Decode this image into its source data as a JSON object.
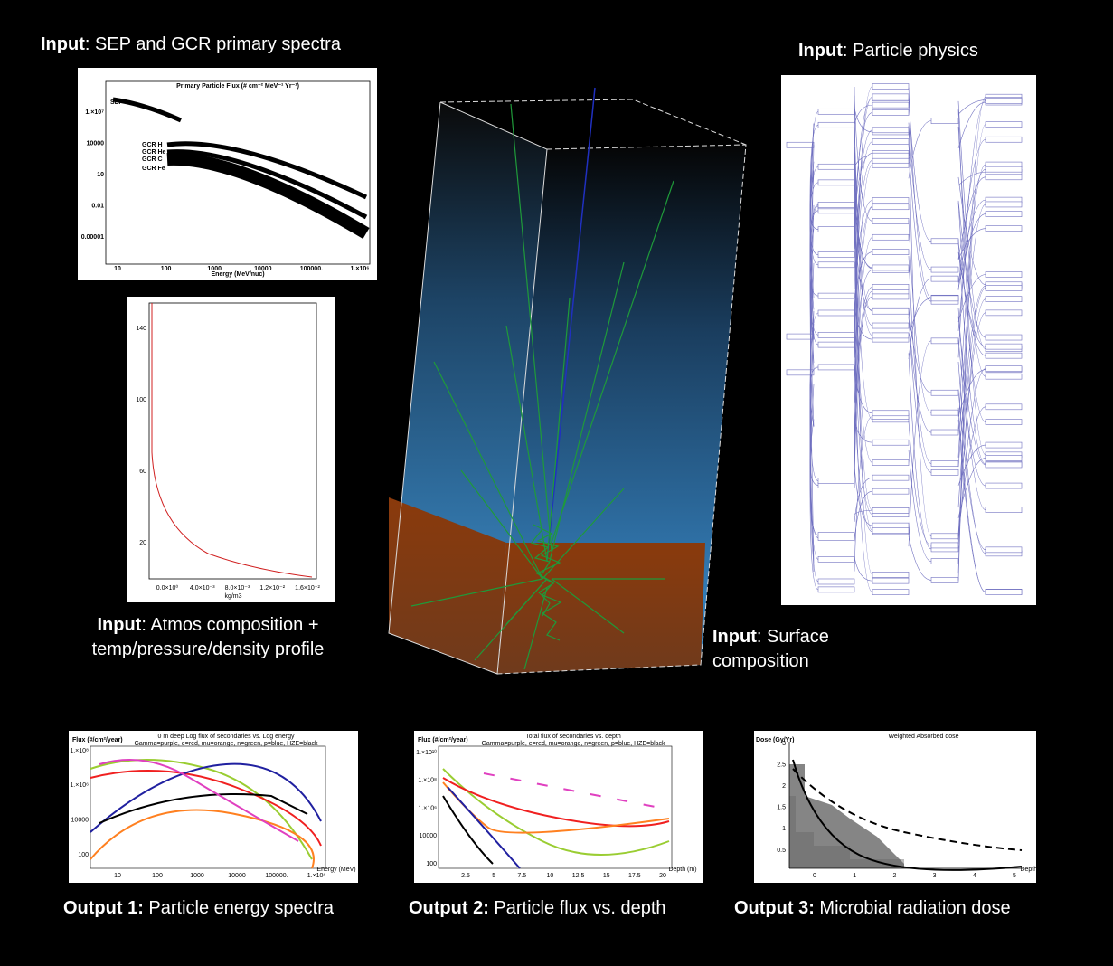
{
  "spectra": {
    "caption_bold": "Input",
    "caption": ": SEP and GCR primary spectra",
    "title": "Primary Particle Flux (# cm⁻² MeV⁻¹ Yr⁻¹)",
    "labels": [
      "SEP",
      "GCR H",
      "GCR He",
      "GCR C",
      "GCR Fe"
    ],
    "yticks": [
      "1.×10⁷",
      "10000",
      "10",
      "0.01",
      "0.00001"
    ],
    "xticks": [
      "10",
      "100",
      "1000",
      "10000",
      "100000.",
      "1.×10⁶"
    ],
    "xlabel": "Energy (MeV/nuc)"
  },
  "atmos": {
    "caption_bold": "Input",
    "caption": ": Atmos composition +",
    "caption2": "temp/pressure/density profile",
    "yticks": [
      "140",
      "100",
      "60",
      "20"
    ],
    "xticks": [
      "0.0×10⁰",
      "4.0×10⁻³",
      "8.0×10⁻³",
      "1.2×10⁻²",
      "1.6×10⁻²"
    ],
    "xlabel": "kg/m3"
  },
  "physics": {
    "caption_bold": "Input",
    "caption": ": Particle physics"
  },
  "surface": {
    "caption_bold": "Input",
    "caption": ": Surface",
    "caption2": "composition"
  },
  "out1": {
    "caption_bold": "Output 1:",
    "caption": " Particle energy spectra",
    "title": "0 m deep Log flux of secondaries vs. Log energy",
    "legend": "Gamma=purple, e=red, mu=orange, n=green, p=blue, HZE=black",
    "ylabel": "Flux (#/cm²/year)",
    "yticks": [
      "1.×10⁸",
      "1.×10⁶",
      "10000",
      "100"
    ],
    "xticks": [
      "10",
      "100",
      "1000",
      "10000",
      "100000.",
      "1.×10⁶"
    ],
    "xlabel": "Energy (MeV)"
  },
  "out2": {
    "caption_bold": "Output 2:",
    "caption": " Particle flux vs. depth",
    "title": "Total flux of secondaries vs. depth",
    "legend": "Gamma=purple, e=red, mu=orange, n=green, p=blue, HZE=black",
    "ylabel": "Flux (#/cm²/year)",
    "yticks": [
      "1.×10¹⁰",
      "1.×10⁸",
      "1.×10⁶",
      "10000",
      "100"
    ],
    "xticks": [
      "2.5",
      "5",
      "7.5",
      "10",
      "12.5",
      "15",
      "17.5",
      "20"
    ],
    "xlabel": "Depth (m)"
  },
  "out3": {
    "caption_bold": "Output 3:",
    "caption": " Microbial radiation dose",
    "title": "Weighted Absorbed dose",
    "ylabel": "Dose (Gy/Yr)",
    "yticks": [
      "3",
      "2.5",
      "2",
      "1.5",
      "1",
      "0.5"
    ],
    "xticks": [
      "0",
      "1",
      "2",
      "3",
      "4",
      "5"
    ],
    "xlabel": "Depth (m)"
  }
}
